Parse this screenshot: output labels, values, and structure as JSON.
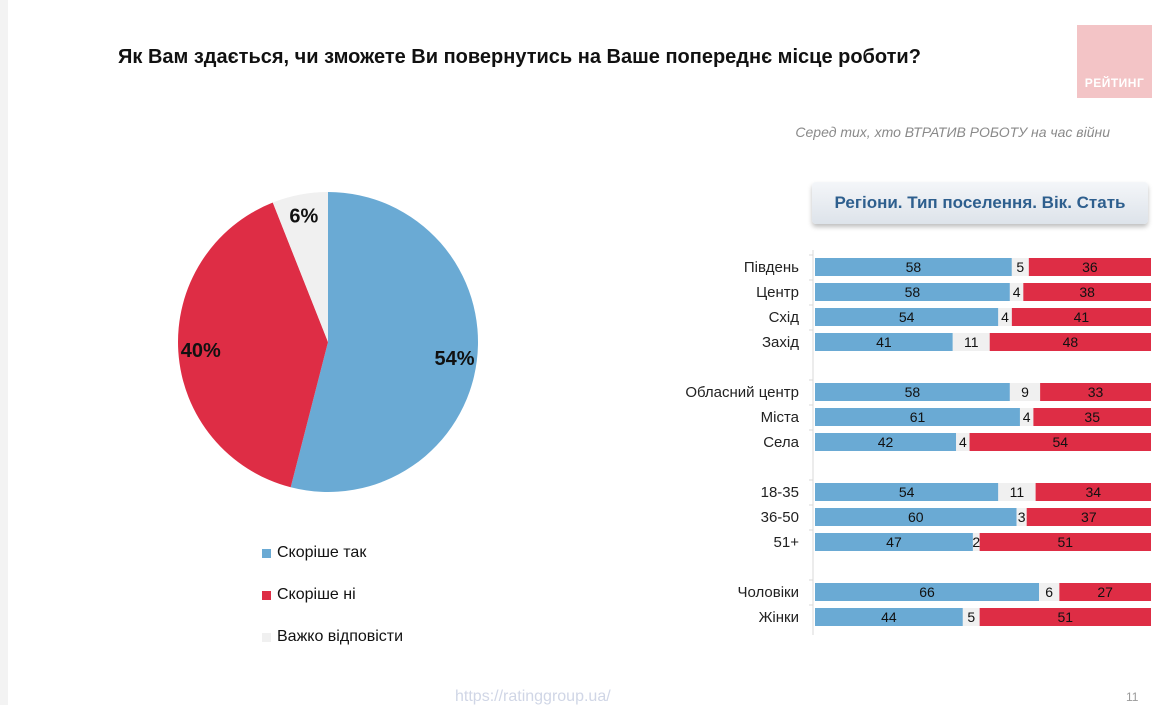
{
  "title": "Як Вам здається, чи зможете Ви повернутись на Ваше попереднє місце роботи?",
  "logo_text": "РЕЙТИНГ",
  "subtitle": "Серед тих, хто ВТРАТИВ РОБОТУ на час війни",
  "section_header": "Регіони. Тип поселення. Вік. Стать",
  "footer_url": "https://ratinggroup.ua/",
  "page_number": "11",
  "colors": {
    "yes": "#6aaad4",
    "no": "#de2d45",
    "hard": "#f0f0f0",
    "logo": "#f3c4c6"
  },
  "legend": [
    {
      "label": "Скоріше так",
      "color": "#6aaad4"
    },
    {
      "label": "Скоріше ні",
      "color": "#de2d45"
    },
    {
      "label": "Важко відповісти",
      "color": "#f0f0f0"
    }
  ],
  "chart_data": [
    {
      "type": "pie",
      "slices": [
        {
          "label": "Скоріше так",
          "value": 54,
          "display": "54%",
          "color": "#6aaad4"
        },
        {
          "label": "Скоріше ні",
          "value": 40,
          "display": "40%",
          "color": "#de2d45"
        },
        {
          "label": "Важко відповісти",
          "value": 6,
          "display": "6%",
          "color": "#f0f0f0"
        }
      ]
    },
    {
      "type": "bar",
      "orientation": "horizontal",
      "stacked": true,
      "groups": [
        {
          "categories": [
            "Південь",
            "Центр",
            "Схід",
            "Захід"
          ]
        },
        {
          "categories": [
            "Обласний центр",
            "Міста",
            "Села"
          ]
        },
        {
          "categories": [
            "18-35",
            "36-50",
            "51+"
          ]
        },
        {
          "categories": [
            "Чоловіки",
            "Жінки"
          ]
        }
      ],
      "series": [
        {
          "name": "Скоріше так",
          "color": "#6aaad4",
          "values": [
            58,
            58,
            54,
            41,
            58,
            61,
            42,
            54,
            60,
            47,
            66,
            44
          ]
        },
        {
          "name": "Важко відповісти",
          "color": "#f0f0f0",
          "values": [
            5,
            4,
            4,
            11,
            9,
            4,
            4,
            11,
            3,
            2,
            6,
            5
          ]
        },
        {
          "name": "Скоріше ні",
          "color": "#de2d45",
          "values": [
            36,
            38,
            41,
            48,
            33,
            35,
            54,
            34,
            37,
            51,
            27,
            51
          ]
        }
      ]
    }
  ]
}
